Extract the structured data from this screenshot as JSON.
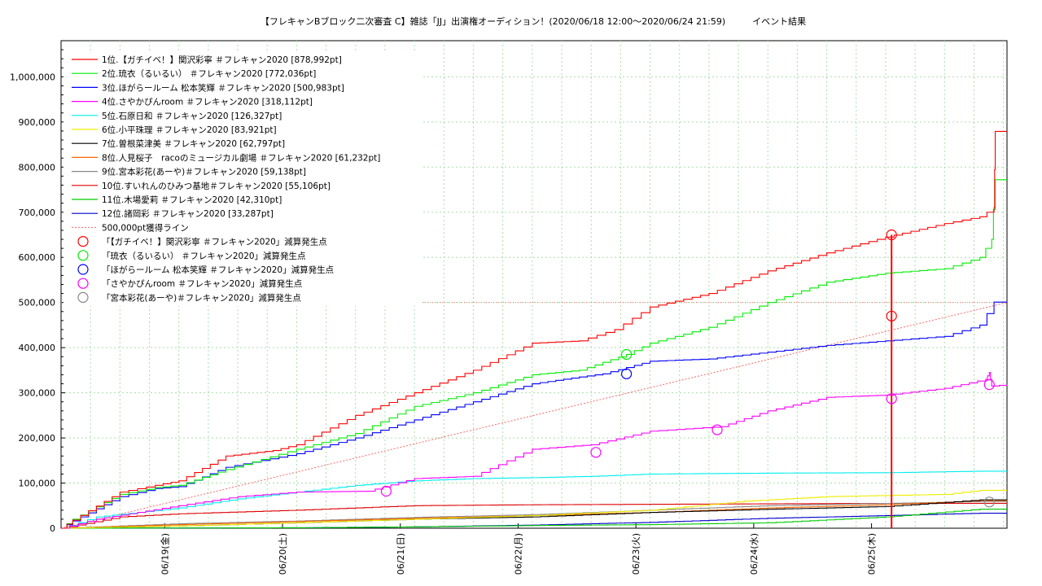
{
  "chart_data": {
    "type": "line",
    "title": "【フレキャンBブロック二次審査 C】雑誌「JJ」出演権オーディション！(2020/06/18 12:00〜2020/06/24 21:59)　　　イベント結果",
    "xlabel": "",
    "ylabel": "",
    "x_ticks": [
      "06/19(金)",
      "06/20(土)",
      "06/21(日)",
      "06/22(月)",
      "06/23(火)",
      "06/24(水)",
      "06/25(木)"
    ],
    "x_start": "2020/06/18 12:00",
    "x_end": "2020/06/24 21:59",
    "ylim": [
      0,
      1080000
    ],
    "y_ticks": [
      0,
      100000,
      200000,
      300000,
      400000,
      500000,
      600000,
      700000,
      800000,
      900000,
      1000000
    ],
    "y_tick_labels": [
      "0",
      "100,000",
      "200,000",
      "300,000",
      "400,000",
      "500,000",
      "600,000",
      "700,000",
      "800,000",
      "900,000",
      "1,000,000"
    ],
    "grid": true,
    "legend_position": "top-left",
    "series": [
      {
        "name": "1位.【ガチイベ！】関沢彩寧 ＃フレキャン2020 [878,992pt]",
        "color": "#ff0000",
        "points": [
          [
            0,
            0
          ],
          [
            0.1,
            18000
          ],
          [
            0.5,
            80000
          ],
          [
            0.8,
            95000
          ],
          [
            1,
            105000
          ],
          [
            1.4,
            160000
          ],
          [
            1.8,
            172000
          ],
          [
            2,
            185000
          ],
          [
            2.5,
            250000
          ],
          [
            3,
            300000
          ],
          [
            3.5,
            350000
          ],
          [
            4,
            410000
          ],
          [
            4.4,
            415000
          ],
          [
            4.7,
            440000
          ],
          [
            5,
            490000
          ],
          [
            5.5,
            520000
          ],
          [
            6,
            570000
          ],
          [
            6.5,
            610000
          ],
          [
            7,
            645000
          ],
          [
            7.5,
            675000
          ],
          [
            7.8,
            690000
          ],
          [
            7.92,
            710000
          ],
          [
            7.93,
            878992
          ],
          [
            8.03,
            878992
          ]
        ]
      },
      {
        "name": "2位.琉衣（るいるい） ＃フレキャン2020 [772,036pt]",
        "color": "#00ee00",
        "points": [
          [
            0,
            0
          ],
          [
            0.1,
            20000
          ],
          [
            0.5,
            75000
          ],
          [
            0.8,
            90000
          ],
          [
            1,
            95000
          ],
          [
            1.4,
            130000
          ],
          [
            2,
            175000
          ],
          [
            2.5,
            210000
          ],
          [
            3,
            270000
          ],
          [
            3.5,
            300000
          ],
          [
            4,
            340000
          ],
          [
            4.4,
            350000
          ],
          [
            4.8,
            385000
          ],
          [
            5,
            410000
          ],
          [
            5.5,
            445000
          ],
          [
            6,
            500000
          ],
          [
            6.5,
            545000
          ],
          [
            7,
            565000
          ],
          [
            7.5,
            575000
          ],
          [
            7.8,
            600000
          ],
          [
            7.9,
            640000
          ],
          [
            7.93,
            772036
          ],
          [
            8.03,
            772036
          ]
        ]
      },
      {
        "name": "3位.ほがらールーム 松本笑輝 ＃フレキャン2020 [500,983pt]",
        "color": "#0000ff",
        "points": [
          [
            0,
            0
          ],
          [
            0.1,
            16000
          ],
          [
            0.5,
            70000
          ],
          [
            0.8,
            88000
          ],
          [
            1,
            92000
          ],
          [
            1.4,
            135000
          ],
          [
            2,
            165000
          ],
          [
            2.5,
            200000
          ],
          [
            3,
            240000
          ],
          [
            3.5,
            280000
          ],
          [
            4,
            320000
          ],
          [
            4.4,
            335000
          ],
          [
            4.6,
            342000
          ],
          [
            5,
            370000
          ],
          [
            5.5,
            375000
          ],
          [
            6,
            390000
          ],
          [
            6.5,
            405000
          ],
          [
            7,
            415000
          ],
          [
            7.5,
            425000
          ],
          [
            7.8,
            450000
          ],
          [
            7.92,
            500983
          ],
          [
            8.03,
            500983
          ]
        ]
      },
      {
        "name": "4位.さやかぴんroom ＃フレキャン2020 [318,112pt]",
        "color": "#ff00ff",
        "points": [
          [
            0,
            0
          ],
          [
            0.3,
            20000
          ],
          [
            1,
            50000
          ],
          [
            1.5,
            70000
          ],
          [
            2,
            80000
          ],
          [
            2.6,
            82000
          ],
          [
            3,
            110000
          ],
          [
            3.5,
            115000
          ],
          [
            4,
            175000
          ],
          [
            4.5,
            185000
          ],
          [
            5,
            215000
          ],
          [
            5.6,
            225000
          ],
          [
            6,
            260000
          ],
          [
            6.5,
            290000
          ],
          [
            7,
            295000
          ],
          [
            7.5,
            310000
          ],
          [
            7.85,
            330000
          ],
          [
            7.88,
            345000
          ],
          [
            7.9,
            315000
          ],
          [
            8.03,
            318112
          ]
        ]
      },
      {
        "name": "5位.石原日和 ＃フレキャン2020 [126,327pt]",
        "color": "#00eeee",
        "points": [
          [
            0,
            0
          ],
          [
            0.3,
            25000
          ],
          [
            1,
            45000
          ],
          [
            1.5,
            65000
          ],
          [
            2,
            80000
          ],
          [
            2.5,
            95000
          ],
          [
            3,
            105000
          ],
          [
            3.5,
            110000
          ],
          [
            4,
            112000
          ],
          [
            4.5,
            115000
          ],
          [
            5,
            120000
          ],
          [
            6,
            122000
          ],
          [
            7,
            123000
          ],
          [
            7.8,
            126327
          ],
          [
            8.03,
            126327
          ]
        ]
      },
      {
        "name": "6位.小平珠理 ＃フレキャン2020 [83,921pt]",
        "color": "#eeee00",
        "points": [
          [
            0,
            0
          ],
          [
            1,
            5000
          ],
          [
            2,
            12000
          ],
          [
            3,
            20000
          ],
          [
            4,
            28000
          ],
          [
            5,
            40000
          ],
          [
            5.8,
            60000
          ],
          [
            6.5,
            70000
          ],
          [
            7.5,
            75000
          ],
          [
            7.8,
            83921
          ],
          [
            8.03,
            83921
          ]
        ]
      },
      {
        "name": "7位.曽根菜津美 ＃フレキャン2020 [62,797pt]",
        "color": "#000000",
        "points": [
          [
            0,
            0
          ],
          [
            1,
            5000
          ],
          [
            2,
            12000
          ],
          [
            3,
            20000
          ],
          [
            4,
            25000
          ],
          [
            5,
            35000
          ],
          [
            6,
            42000
          ],
          [
            7,
            48000
          ],
          [
            7.8,
            62797
          ],
          [
            8.03,
            62797
          ]
        ]
      },
      {
        "name": "8位.人見桜子　racoのミュージカル劇場 ＃フレキャン2020 [61,232pt]",
        "color": "#ff6600",
        "points": [
          [
            0,
            0
          ],
          [
            1,
            8000
          ],
          [
            2,
            15000
          ],
          [
            3,
            22000
          ],
          [
            4,
            28000
          ],
          [
            5,
            35000
          ],
          [
            6,
            45000
          ],
          [
            7,
            52000
          ],
          [
            7.8,
            61232
          ],
          [
            8.03,
            61232
          ]
        ]
      },
      {
        "name": "9位.宮本彩花(あーや)＃フレキャン2020 [59,138pt]",
        "color": "#888888",
        "points": [
          [
            0,
            0
          ],
          [
            1,
            10000
          ],
          [
            2,
            16000
          ],
          [
            3,
            24000
          ],
          [
            4,
            30000
          ],
          [
            5,
            40000
          ],
          [
            6,
            50000
          ],
          [
            7,
            55000
          ],
          [
            7.8,
            59138
          ],
          [
            8.03,
            59138
          ]
        ]
      },
      {
        "name": "10位.すいれんのひみつ基地＃フレキャン2020 [55,106pt]",
        "color": "#dd0000",
        "points": [
          [
            0,
            0
          ],
          [
            0.5,
            25000
          ],
          [
            1,
            32000
          ],
          [
            2,
            40000
          ],
          [
            3,
            50000
          ],
          [
            4,
            52000
          ],
          [
            5,
            53000
          ],
          [
            6,
            54000
          ],
          [
            7,
            55000
          ],
          [
            8.03,
            55106
          ]
        ]
      },
      {
        "name": "11位.木場愛莉 ＃フレキャン2020 [42,310pt]",
        "color": "#00cc00",
        "points": [
          [
            0,
            0
          ],
          [
            2,
            1000
          ],
          [
            3,
            3000
          ],
          [
            4,
            6000
          ],
          [
            5,
            8000
          ],
          [
            6,
            12000
          ],
          [
            7,
            25000
          ],
          [
            7.8,
            42310
          ],
          [
            8.03,
            42310
          ]
        ]
      },
      {
        "name": "12位.諸岡彩 ＃フレキャン2020 [33,287pt]",
        "color": "#0000cc",
        "points": [
          [
            0,
            0
          ],
          [
            2,
            1000
          ],
          [
            3,
            3000
          ],
          [
            4,
            7000
          ],
          [
            5,
            13000
          ],
          [
            6,
            22000
          ],
          [
            7,
            28000
          ],
          [
            7.8,
            33287
          ],
          [
            8.03,
            33287
          ]
        ]
      }
    ],
    "reference_line": {
      "name": "500,000pt獲得ライン",
      "color": "#ff6666",
      "points": [
        [
          0,
          0
        ],
        [
          8.03,
          500000
        ]
      ],
      "level": 500000
    },
    "annotations": [
      {
        "name": "「【ガチイベ！】関沢彩寧 ＃フレキャン2020」減算発生点",
        "color": "#ff0000",
        "markers": [
          [
            7.05,
            650000
          ],
          [
            7.05,
            470000
          ]
        ],
        "drop_line": [
          7.05,
          650000,
          0
        ]
      },
      {
        "name": "「琉衣（るいるい） ＃フレキャン2020」減算発生点",
        "color": "#00ee00",
        "markers": [
          [
            4.8,
            385000
          ]
        ]
      },
      {
        "name": "「ほがらールーム 松本笑輝 ＃フレキャン2020」減算発生点",
        "color": "#0000ff",
        "markers": [
          [
            4.8,
            342000
          ]
        ]
      },
      {
        "name": "「さやかぴんroom ＃フレキャン2020」減算発生点",
        "color": "#ff00ff",
        "markers": [
          [
            2.76,
            82000
          ],
          [
            4.54,
            168000
          ],
          [
            5.57,
            218000
          ],
          [
            7.05,
            287000
          ],
          [
            7.88,
            318000
          ]
        ]
      },
      {
        "name": "「宮本彩花(あーや)＃フレキャン2020」減算発生点",
        "color": "#888888",
        "markers": [
          [
            7.88,
            58000
          ]
        ]
      }
    ]
  }
}
